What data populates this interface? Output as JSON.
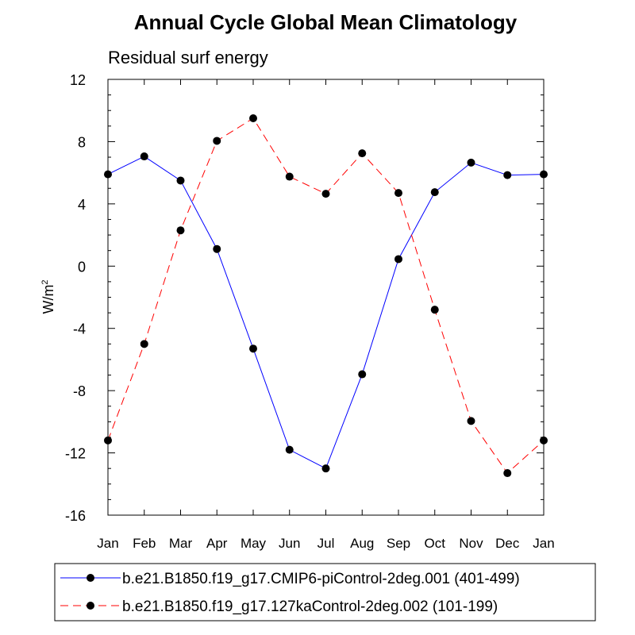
{
  "chart_data": {
    "type": "line",
    "title": "Annual Cycle Global Mean Climatology",
    "subtitle": "Residual surf energy",
    "ylabel": "W/m",
    "ylabel_superscript": "2",
    "xlabel": "",
    "categories": [
      "Jan",
      "Feb",
      "Mar",
      "Apr",
      "May",
      "Jun",
      "Jul",
      "Aug",
      "Sep",
      "Oct",
      "Nov",
      "Dec",
      "Jan"
    ],
    "ylim": [
      -16,
      12
    ],
    "yticks": [
      -16,
      -12,
      -8,
      -4,
      0,
      4,
      8,
      12
    ],
    "ytick_labels": [
      "-16",
      "-12",
      "-8",
      "-4",
      "0",
      "4",
      "8",
      "12"
    ],
    "series": [
      {
        "name": "b.e21.B1850.f19_g17.CMIP6-piControl-2deg.001 (401-499)",
        "color": "#0000ff",
        "dash": "solid",
        "values": [
          5.9,
          7.05,
          5.5,
          1.1,
          -5.3,
          -11.8,
          -13.0,
          -6.95,
          0.45,
          4.75,
          6.65,
          5.85,
          5.9
        ]
      },
      {
        "name": "b.e21.B1850.f19_g17.127kaControl-2deg.002 (101-199)",
        "color": "#ff0000",
        "dash": "dashed",
        "values": [
          -11.2,
          -5.0,
          2.3,
          8.05,
          9.5,
          5.75,
          4.65,
          7.25,
          4.7,
          -2.8,
          -9.95,
          -13.3,
          -11.2
        ]
      }
    ],
    "legend_position": "bottom",
    "marker": "filled-circle"
  }
}
